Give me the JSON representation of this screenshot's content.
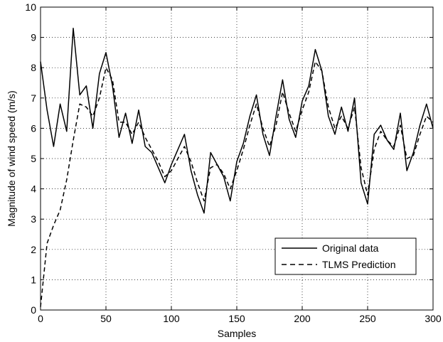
{
  "chart_data": {
    "type": "line",
    "title": "",
    "xlabel": "Samples",
    "ylabel": "Magnitude of wind speed (m/s)",
    "xlim": [
      0,
      300
    ],
    "ylim": [
      0,
      10
    ],
    "x_ticks": [
      0,
      50,
      100,
      150,
      200,
      250,
      300
    ],
    "y_ticks": [
      0,
      1,
      2,
      3,
      4,
      5,
      6,
      7,
      8,
      9,
      10
    ],
    "x_tick_labels": [
      "0",
      "50",
      "100",
      "150",
      "200",
      "250",
      "300"
    ],
    "y_tick_labels": [
      "0",
      "1",
      "2",
      "3",
      "4",
      "5",
      "6",
      "7",
      "8",
      "9",
      "10"
    ],
    "grid": true,
    "legend_position": "bottom-right",
    "x": [
      0,
      5,
      10,
      15,
      20,
      25,
      30,
      35,
      40,
      45,
      50,
      55,
      60,
      65,
      70,
      75,
      80,
      85,
      90,
      95,
      100,
      105,
      110,
      115,
      120,
      125,
      130,
      135,
      140,
      145,
      150,
      155,
      160,
      165,
      170,
      175,
      180,
      185,
      190,
      195,
      200,
      205,
      210,
      215,
      220,
      225,
      230,
      235,
      240,
      245,
      250,
      255,
      260,
      265,
      270,
      275,
      280,
      285,
      290,
      295,
      300
    ],
    "series": [
      {
        "name": "Original data",
        "style": "solid",
        "values": [
          8.2,
          6.6,
          5.4,
          6.8,
          5.9,
          9.3,
          7.1,
          7.4,
          6.0,
          7.8,
          8.5,
          7.4,
          5.7,
          6.5,
          5.5,
          6.6,
          5.4,
          5.2,
          4.7,
          4.2,
          4.8,
          5.3,
          5.8,
          4.6,
          3.8,
          3.2,
          5.2,
          4.8,
          4.4,
          3.6,
          4.9,
          5.5,
          6.4,
          7.1,
          5.8,
          5.1,
          6.4,
          7.6,
          6.3,
          5.7,
          6.9,
          7.4,
          8.6,
          7.9,
          6.4,
          5.8,
          6.7,
          5.9,
          7.0,
          4.2,
          3.5,
          5.8,
          6.1,
          5.6,
          5.3,
          6.5,
          4.6,
          5.2,
          6.1,
          6.8,
          6.0
        ]
      },
      {
        "name": "TLMS Prediction",
        "style": "dashed",
        "values": [
          0.1,
          2.2,
          2.8,
          3.3,
          4.3,
          5.6,
          6.8,
          6.7,
          6.4,
          7.0,
          8.0,
          7.6,
          6.2,
          6.2,
          5.8,
          6.2,
          5.7,
          5.3,
          4.9,
          4.4,
          4.6,
          5.0,
          5.4,
          4.9,
          4.2,
          3.6,
          4.7,
          4.8,
          4.5,
          4.0,
          4.6,
          5.3,
          6.1,
          6.8,
          6.0,
          5.4,
          6.1,
          7.2,
          6.5,
          5.9,
          6.6,
          7.2,
          8.2,
          7.9,
          6.7,
          6.0,
          6.4,
          6.0,
          6.7,
          4.7,
          3.8,
          5.3,
          5.9,
          5.6,
          5.4,
          6.1,
          5.0,
          5.1,
          5.8,
          6.4,
          6.2
        ]
      }
    ]
  }
}
